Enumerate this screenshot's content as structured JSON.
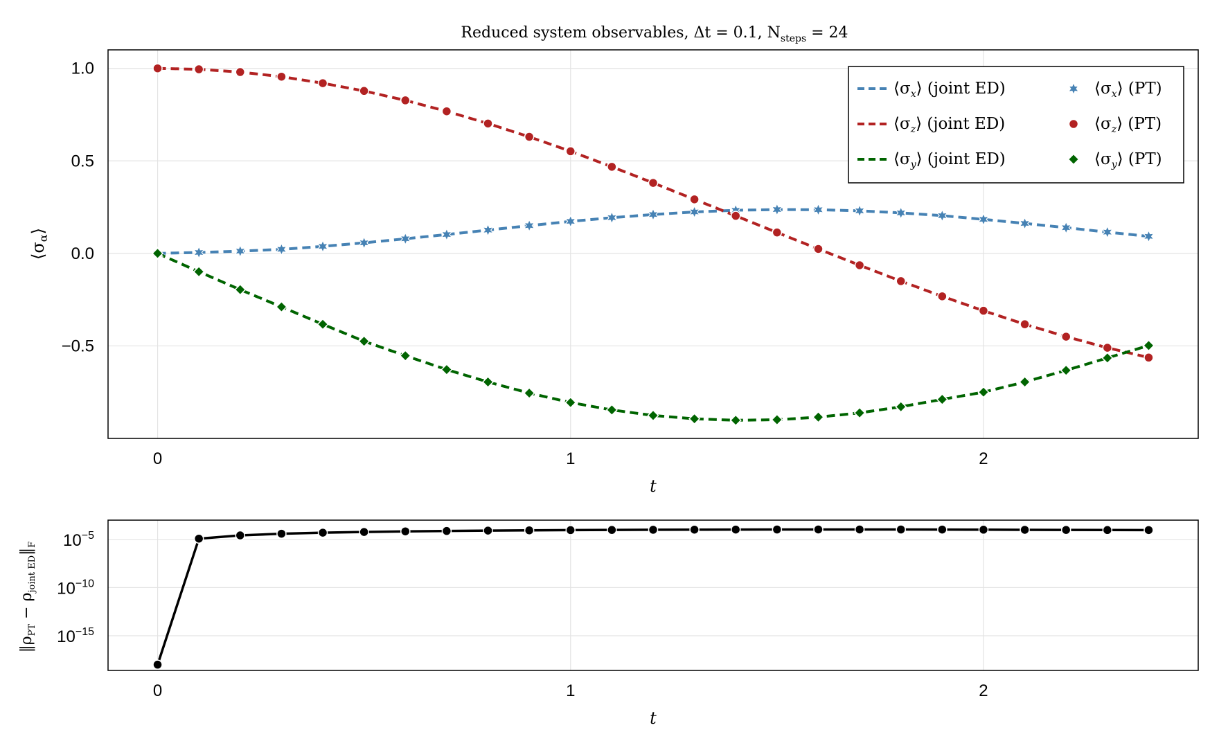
{
  "chart_data": [
    {
      "type": "line",
      "title": "Reduced system observables, Δt = 0.1, N_steps = 24",
      "title_parts": {
        "main": "Reduced system observables, Δt = 0.1, N",
        "sub": "steps",
        "tail": " = 24"
      },
      "xlabel": "t",
      "ylabel": "⟨σ_α⟩",
      "ylabel_parts": {
        "main": "⟨σ",
        "sub": "α",
        "tail": "⟩"
      },
      "xlim": [
        -0.12,
        2.52
      ],
      "ylim": [
        -1.0,
        1.1
      ],
      "xticks": [
        0,
        1,
        2
      ],
      "yticks": [
        1.0,
        0.5,
        0.0,
        -0.5
      ],
      "ytick_labels": [
        "1.0",
        "0.5",
        "0.0",
        "−0.5"
      ],
      "grid": true,
      "legend_position": "top-right",
      "x": [
        0,
        0.1,
        0.2,
        0.3,
        0.4,
        0.5,
        0.6,
        0.7,
        0.8,
        0.9,
        1.0,
        1.1,
        1.2,
        1.3,
        1.4,
        1.5,
        1.6,
        1.7,
        1.8,
        1.9,
        2.0,
        2.1,
        2.2,
        2.3,
        2.4
      ],
      "series": [
        {
          "label": "⟨σ_x⟩ (joint ED)",
          "legend_main": "⟨σ",
          "legend_sub": "x",
          "legend_tail": "⟩ (joint ED)",
          "style": "dashed",
          "color": "#4682b4",
          "key": "sx",
          "values": [
            0.0,
            0.005,
            0.012,
            0.022,
            0.038,
            0.057,
            0.079,
            0.102,
            0.126,
            0.15,
            0.173,
            0.193,
            0.21,
            0.224,
            0.233,
            0.237,
            0.236,
            0.23,
            0.219,
            0.204,
            0.184,
            0.162,
            0.139,
            0.115,
            0.092
          ]
        },
        {
          "label": "⟨σ_z⟩ (joint ED)",
          "legend_main": "⟨σ",
          "legend_sub": "z",
          "legend_tail": "⟩ (joint ED)",
          "style": "dashed",
          "color": "#b22222",
          "key": "sz",
          "values": [
            1.0,
            0.995,
            0.98,
            0.955,
            0.92,
            0.878,
            0.827,
            0.768,
            0.702,
            0.63,
            0.552,
            0.468,
            0.381,
            0.292,
            0.203,
            0.113,
            0.024,
            -0.064,
            -0.15,
            -0.232,
            -0.31,
            -0.383,
            -0.45,
            -0.51,
            -0.563
          ]
        },
        {
          "label": "⟨σ_y⟩ (joint ED)",
          "legend_main": "⟨σ",
          "legend_sub": "y",
          "legend_tail": "⟩ (joint ED)",
          "style": "dashed",
          "color": "#006400",
          "key": "sy",
          "values": [
            0.0,
            -0.099,
            -0.196,
            -0.289,
            -0.383,
            -0.475,
            -0.553,
            -0.628,
            -0.695,
            -0.755,
            -0.806,
            -0.846,
            -0.876,
            -0.894,
            -0.902,
            -0.899,
            -0.885,
            -0.862,
            -0.829,
            -0.789,
            -0.75,
            -0.695,
            -0.632,
            -0.565,
            -0.498
          ]
        },
        {
          "label": "⟨σ_x⟩ (PT)",
          "legend_main": "⟨σ",
          "legend_sub": "x",
          "legend_tail": "⟩ (PT)",
          "style": "markers",
          "marker": "star",
          "color": "#4682b4",
          "key": "sx"
        },
        {
          "label": "⟨σ_z⟩ (PT)",
          "legend_main": "⟨σ",
          "legend_sub": "z",
          "legend_tail": "⟩ (PT)",
          "style": "markers",
          "marker": "circle",
          "color": "#b22222",
          "key": "sz"
        },
        {
          "label": "⟨σ_y⟩ (PT)",
          "legend_main": "⟨σ",
          "legend_sub": "y",
          "legend_tail": "⟩ (PT)",
          "style": "markers",
          "marker": "diamond",
          "color": "#006400",
          "key": "sy"
        }
      ]
    },
    {
      "type": "line",
      "xlabel": "t",
      "ylabel": "‖ρ_PT − ρ_joint ED‖_F",
      "yscale": "log10",
      "xlim": [
        -0.12,
        2.52
      ],
      "ylim_log10": [
        -18.6,
        -3.0
      ],
      "xticks": [
        0,
        1,
        2
      ],
      "yticks_log10": [
        -5,
        -10,
        -15
      ],
      "grid": true,
      "x": [
        0,
        0.1,
        0.2,
        0.3,
        0.4,
        0.5,
        0.6,
        0.7,
        0.8,
        0.9,
        1.0,
        1.1,
        1.2,
        1.3,
        1.4,
        1.5,
        1.6,
        1.7,
        1.8,
        1.9,
        2.0,
        2.1,
        2.2,
        2.3,
        2.4
      ],
      "series": [
        {
          "color": "#000000",
          "values": [
            1e-18,
            1.2e-05,
            2.6e-05,
            3.9e-05,
            5e-05,
            5.9e-05,
            6.8e-05,
            7.5e-05,
            8.2e-05,
            8.7e-05,
            9.2e-05,
            9.6e-05,
            0.0001,
            0.000103,
            0.000105,
            0.000107,
            0.000108,
            0.000108,
            0.000107,
            0.000105,
            0.000102,
            9.9e-05,
            9.6e-05,
            9.4e-05,
            9.3e-05
          ]
        }
      ]
    }
  ]
}
